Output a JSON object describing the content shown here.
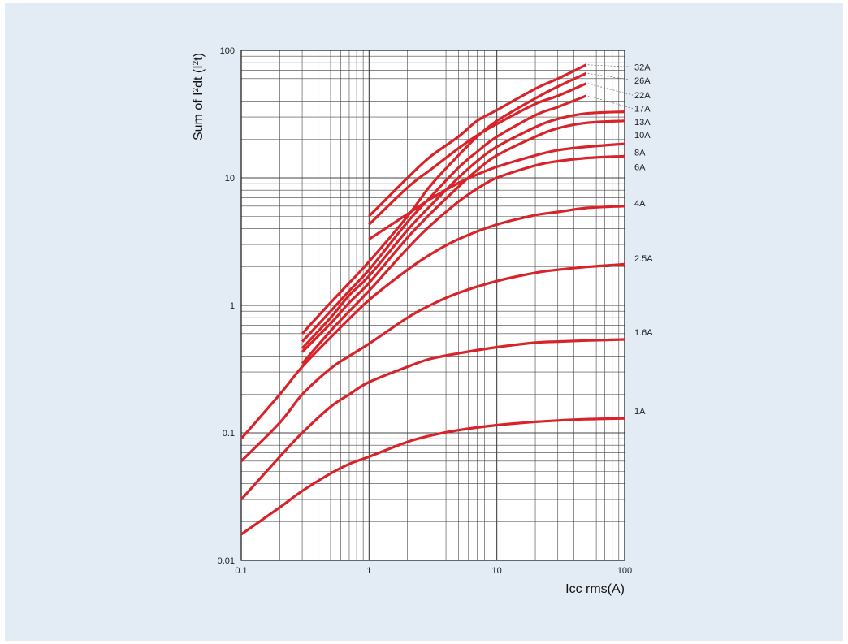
{
  "colors": {
    "background": "#e3ebf5",
    "curve": "#d9232a",
    "grid": "#444444",
    "plot_bg": "#ffffff"
  },
  "chart_data": {
    "type": "line",
    "title": "",
    "xlabel": "Icc rms(A)",
    "ylabel_prefix": "Sum of I",
    "ylabel_mid": "dt (I",
    "ylabel_suffix": "t)",
    "ylabel_sup": "2",
    "x_scale": "log",
    "y_scale": "log",
    "xlim": [
      0.1,
      100
    ],
    "ylim": [
      0.01,
      100
    ],
    "grid": true,
    "legend_placement": "right",
    "x_ticks": [
      {
        "value": 0.1,
        "label": "0.1"
      },
      {
        "value": 1,
        "label": "1"
      },
      {
        "value": 10,
        "label": "10"
      },
      {
        "value": 100,
        "label": "100"
      }
    ],
    "y_ticks": [
      {
        "value": 0.01,
        "label": "0.01"
      },
      {
        "value": 0.1,
        "label": "0.1"
      },
      {
        "value": 1,
        "label": "1"
      },
      {
        "value": 10,
        "label": "10"
      },
      {
        "value": 100,
        "label": "100"
      }
    ],
    "series": [
      {
        "name": "32A",
        "label_y": 70,
        "leader": true,
        "x": [
          1,
          2,
          3,
          5,
          7,
          10,
          20,
          30,
          50
        ],
        "y": [
          5.0,
          10.0,
          14.6,
          21.0,
          28.0,
          34.0,
          50.0,
          60.0,
          77.0
        ]
      },
      {
        "name": "26A",
        "label_y": 55,
        "leader": true,
        "x": [
          0.3,
          0.5,
          0.7,
          1,
          2,
          3,
          5,
          7,
          10,
          20,
          30,
          50
        ],
        "y": [
          0.6,
          1.05,
          1.5,
          2.2,
          5.0,
          8.6,
          15.0,
          21.0,
          28.0,
          42.0,
          52.0,
          66.0
        ]
      },
      {
        "name": "22A",
        "label_y": 42,
        "leader": true,
        "x": [
          1,
          2,
          3,
          5,
          7,
          10,
          20,
          30,
          50
        ],
        "y": [
          4.3,
          8.4,
          11.5,
          17.0,
          21.5,
          26.5,
          38.0,
          44.0,
          55.0
        ]
      },
      {
        "name": "17A",
        "label_y": 33,
        "leader": true,
        "x": [
          0.3,
          0.5,
          0.7,
          1,
          2,
          3,
          5,
          7,
          10,
          20,
          30,
          50
        ],
        "y": [
          0.52,
          0.9,
          1.3,
          1.9,
          4.5,
          7.0,
          12.0,
          16.0,
          21.0,
          31.0,
          36.0,
          44.0
        ]
      },
      {
        "name": "13A",
        "label_y": 26,
        "leader": false,
        "x": [
          0.3,
          0.5,
          0.7,
          1,
          2,
          3,
          5,
          7,
          10,
          20,
          30,
          50,
          100
        ],
        "y": [
          0.46,
          0.8,
          1.2,
          1.7,
          3.9,
          6.0,
          10.0,
          13.5,
          17.5,
          25.0,
          29.0,
          32.0,
          33.0
        ]
      },
      {
        "name": "10A",
        "label_y": 20.5,
        "leader": false,
        "x": [
          0.3,
          0.5,
          0.7,
          1,
          2,
          3,
          5,
          7,
          10,
          20,
          30,
          50,
          100
        ],
        "y": [
          0.43,
          0.72,
          1.05,
          1.5,
          3.4,
          5.2,
          8.5,
          11.5,
          15.0,
          21.0,
          24.5,
          27.0,
          28.0
        ]
      },
      {
        "name": "8A",
        "label_y": 15,
        "leader": false,
        "x": [
          1,
          2,
          3,
          5,
          7,
          10,
          20,
          30,
          50,
          100
        ],
        "y": [
          3.3,
          5.2,
          6.8,
          9.1,
          10.6,
          12.2,
          15.0,
          16.5,
          17.5,
          18.5
        ]
      },
      {
        "name": "6A",
        "label_y": 11.5,
        "leader": false,
        "x": [
          0.3,
          0.5,
          0.7,
          1,
          2,
          3,
          5,
          7,
          10,
          20,
          30,
          50,
          100
        ],
        "y": [
          0.35,
          0.63,
          0.9,
          1.3,
          2.8,
          4.2,
          6.5,
          8.2,
          10.0,
          12.5,
          13.5,
          14.3,
          14.8
        ]
      },
      {
        "name": "4A",
        "label_y": 6.0,
        "leader": false,
        "x": [
          0.1,
          0.2,
          0.3,
          0.5,
          1,
          2,
          3,
          5,
          10,
          20,
          30,
          50,
          100
        ],
        "y": [
          0.09,
          0.2,
          0.33,
          0.56,
          1.1,
          1.9,
          2.5,
          3.3,
          4.3,
          5.1,
          5.4,
          5.8,
          6.0
        ]
      },
      {
        "name": "2.5A",
        "label_y": 2.2,
        "leader": false,
        "x": [
          0.1,
          0.2,
          0.3,
          0.5,
          0.7,
          1,
          2,
          3,
          5,
          10,
          20,
          30,
          50,
          100
        ],
        "y": [
          0.06,
          0.12,
          0.2,
          0.32,
          0.4,
          0.5,
          0.8,
          1.0,
          1.25,
          1.55,
          1.8,
          1.9,
          2.0,
          2.1
        ]
      },
      {
        "name": "1.6A",
        "label_y": 0.58,
        "leader": false,
        "x": [
          0.1,
          0.2,
          0.3,
          0.5,
          0.7,
          1,
          2,
          3,
          5,
          10,
          20,
          30,
          50,
          100
        ],
        "y": [
          0.03,
          0.065,
          0.1,
          0.16,
          0.2,
          0.25,
          0.33,
          0.38,
          0.42,
          0.47,
          0.51,
          0.52,
          0.53,
          0.54
        ]
      },
      {
        "name": "1A",
        "label_y": 0.14,
        "leader": false,
        "x": [
          0.1,
          0.2,
          0.3,
          0.5,
          0.7,
          1,
          2,
          3,
          5,
          10,
          20,
          30,
          50,
          100
        ],
        "y": [
          0.016,
          0.026,
          0.035,
          0.048,
          0.057,
          0.065,
          0.085,
          0.095,
          0.105,
          0.115,
          0.122,
          0.125,
          0.128,
          0.13
        ]
      }
    ]
  }
}
